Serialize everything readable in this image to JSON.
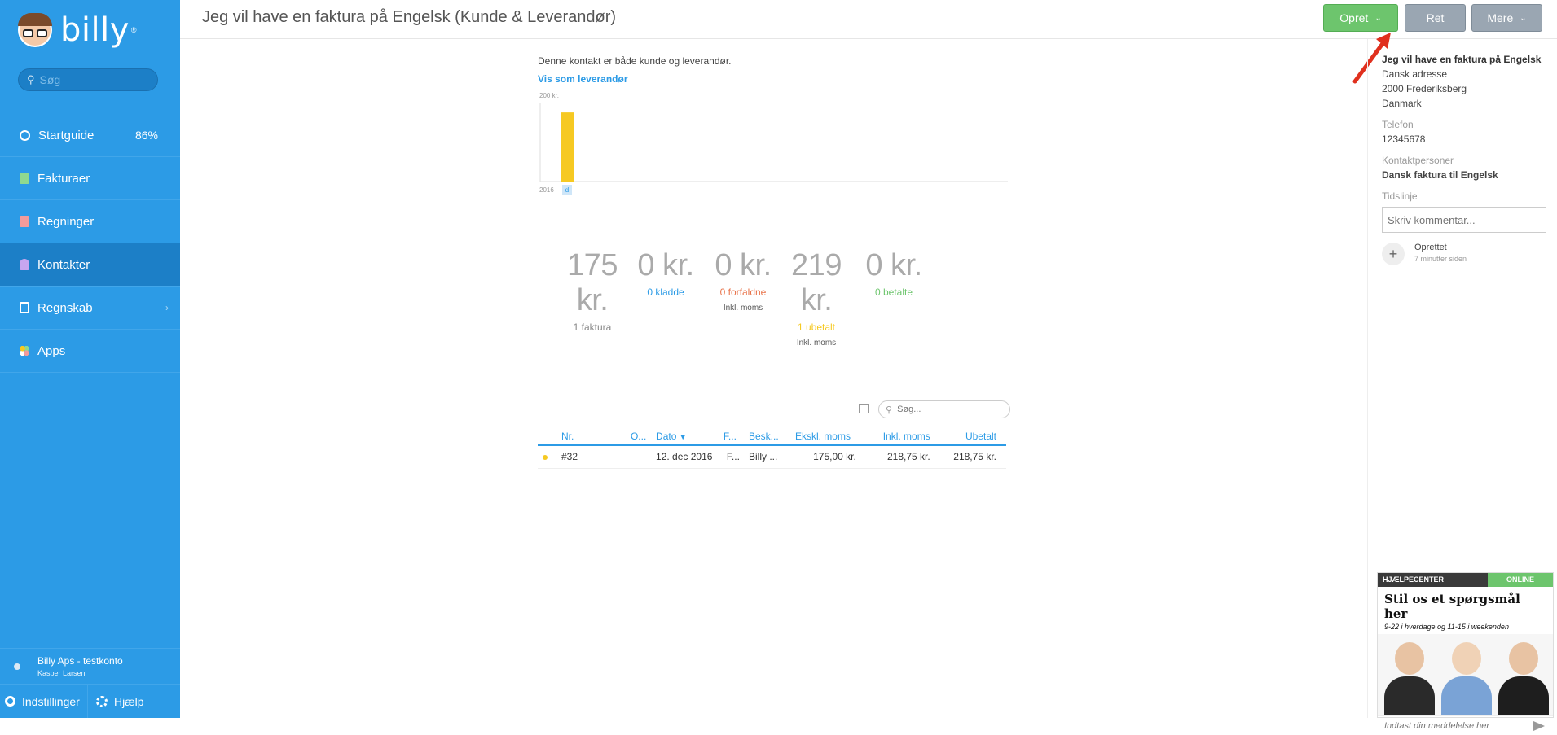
{
  "sidebar": {
    "brand": "billy",
    "brand_mark": "®",
    "search_placeholder": "Søg",
    "items": [
      {
        "label": "Startguide",
        "badge": "86%",
        "icon": "circle-progress-icon"
      },
      {
        "label": "Fakturaer",
        "icon": "invoice-icon"
      },
      {
        "label": "Regninger",
        "icon": "bill-icon"
      },
      {
        "label": "Kontakter",
        "icon": "contact-icon",
        "active": true
      },
      {
        "label": "Regnskab",
        "icon": "accounting-icon",
        "chevron": "›"
      },
      {
        "label": "Apps",
        "icon": "apps-icon"
      }
    ],
    "user": {
      "org": "Billy Aps - testkonto",
      "name": "Kasper Larsen"
    },
    "settings_label": "Indstillinger",
    "help_label": "Hjælp"
  },
  "header": {
    "title": "Jeg vil have en faktura på Engelsk (Kunde & Leverandør)",
    "opret_label": "Opret",
    "ret_label": "Ret",
    "mere_label": "Mere"
  },
  "main": {
    "info_text": "Denne kontakt er både kunde og leverandør.",
    "view_link": "Vis som leverandør"
  },
  "chart_data": {
    "type": "bar",
    "categories": [
      "d"
    ],
    "values": [
      175
    ],
    "x_start_label": "2016",
    "ytick_label": "200 kr.",
    "ylim": [
      0,
      200
    ],
    "bar_color": "#f6c922"
  },
  "stats": [
    {
      "amount": "175 kr.",
      "label": "1 faktura",
      "sub": "",
      "color": "#888888"
    },
    {
      "amount": "0 kr.",
      "label": "0 kladde",
      "sub": "",
      "color": "#2c9be6"
    },
    {
      "amount": "0 kr.",
      "label": "0 forfaldne",
      "sub": "Inkl. moms",
      "color": "#e8734a"
    },
    {
      "amount": "219 kr.",
      "label": "1 ubetalt",
      "sub": "Inkl. moms",
      "color": "#f6c922"
    },
    {
      "amount": "0 kr.",
      "label": "0 betalte",
      "sub": "",
      "color": "#6dc56d"
    }
  ],
  "table": {
    "search_placeholder": "Søg...",
    "headers": [
      "Nr.",
      "O...",
      "Dato",
      "F...",
      "Besk...",
      "Ekskl. moms",
      "Inkl. moms",
      "Ubetalt"
    ],
    "rows": [
      {
        "nr": "#32",
        "o": "",
        "dato": "12. dec 2016",
        "f": "F...",
        "besk": "Billy ...",
        "ekskl": "175,00 kr.",
        "inkl": "218,75 kr.",
        "ubetalt": "218,75 kr."
      }
    ]
  },
  "right_pane": {
    "name": "Jeg vil have en faktura på Engelsk",
    "address1": "Dansk adresse",
    "address2": "2000 Frederiksberg",
    "country": "Danmark",
    "phone_label": "Telefon",
    "phone": "12345678",
    "contacts_label": "Kontaktpersoner",
    "contact_person": "Dansk faktura til Engelsk",
    "timeline_label": "Tidslinje",
    "comment_placeholder": "Skriv kommentar...",
    "event_title": "Oprettet",
    "event_time": "7 minutter siden"
  },
  "help_widget": {
    "header": "HJÆLPECENTER",
    "status": "ONLINE",
    "title": "Stil os et spørgsmål her",
    "subtitle": "9-22 i hverdage og 11-15 i weekenden",
    "input_placeholder": "Indtast din meddelelse her"
  }
}
